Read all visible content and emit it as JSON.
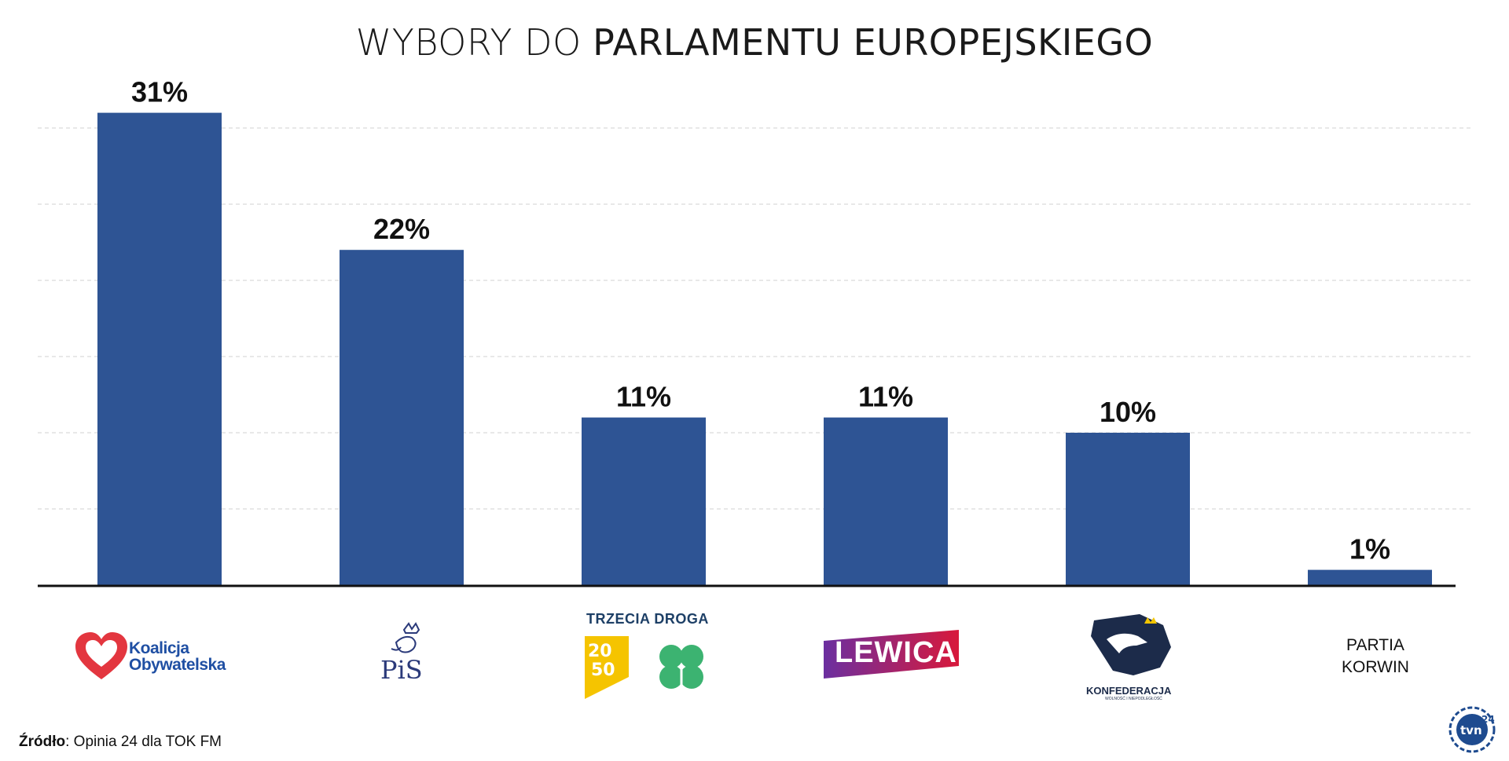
{
  "title": {
    "part1": "WYBORY DO",
    "part2": "PARLAMENTU EUROPEJSKIEGO"
  },
  "colors": {
    "bar": "#2e5494",
    "grid": "#d0d0d0",
    "axis": "#111111"
  },
  "chart_data": {
    "type": "bar",
    "title": "WYBORY DO PARLAMENTU EUROPEJSKIEGO",
    "categories": [
      "Koalicja Obywatelska",
      "PiS",
      "Trzecia Droga",
      "Lewica",
      "Konfederacja",
      "Partia Korwin"
    ],
    "values": [
      31,
      22,
      11,
      11,
      10,
      1
    ],
    "labels": [
      "31%",
      "22%",
      "11%",
      "11%",
      "10%",
      "1%"
    ],
    "xlabel": "",
    "ylabel": "",
    "ylim": [
      0,
      35
    ],
    "grid": true,
    "gridlines": [
      5,
      10,
      15,
      20,
      25,
      30
    ]
  },
  "logos": {
    "ko": {
      "line1": "Koalicja",
      "line2": "Obywatelska"
    },
    "pis": {
      "text": "PiS"
    },
    "td": {
      "title": "TRZECIA DROGA",
      "num": "2050"
    },
    "lewica": {
      "text": "LEWICA"
    },
    "konf": {
      "text": "KONFEDERACJA",
      "sub": "WOLNOŚĆ I NIEPODLEGŁOŚĆ"
    },
    "korwin": {
      "line1": "PARTIA",
      "line2": "KORWIN"
    },
    "tvn": {
      "text": "tvn",
      "num": "24"
    }
  },
  "source": {
    "label": "Źródło",
    "text": ": Opinia 24 dla TOK FM"
  }
}
